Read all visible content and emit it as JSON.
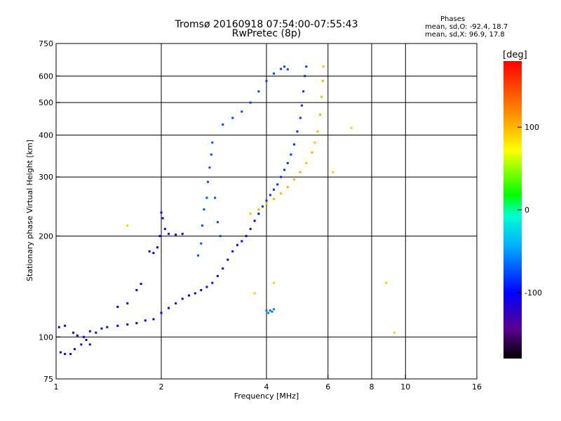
{
  "title": {
    "line1": "Tromsø 20160918 07:54:00-07:55:43",
    "line2": "RwPretec (8p)"
  },
  "phases": {
    "heading": "Phases",
    "o_mode": "mean, sd,O: -92.4, 18.7",
    "x_mode": "mean, sd,X:  96.9, 17.8"
  },
  "colorbar": {
    "unit_label": "[deg]",
    "ticks": [
      "100",
      "0",
      "-100"
    ],
    "tick_values": [
      100,
      0,
      -100
    ],
    "range": [
      -180,
      180
    ]
  },
  "chart_data": {
    "type": "scatter",
    "xlabel": "Frequency [MHz]",
    "ylabel": "Stationary phase Virtual Height [km]",
    "xscale": "log2",
    "yscale": "log",
    "xlim": [
      1,
      16
    ],
    "ylim": [
      75,
      750
    ],
    "x_ticks": [
      1,
      2,
      4,
      6,
      8,
      10,
      16
    ],
    "x_tick_labels": [
      "1",
      "2",
      "4",
      "6",
      "8",
      "10",
      "16"
    ],
    "y_ticks": [
      75,
      100,
      200,
      300,
      400,
      500,
      600,
      750
    ],
    "y_tick_labels": [
      "75",
      "100",
      "200",
      "300",
      "400",
      "500",
      "600",
      "750"
    ],
    "x_gridlines": [
      2,
      4,
      6,
      8,
      10
    ],
    "y_gridlines": [
      100,
      200,
      300,
      400,
      500,
      600
    ],
    "series": [
      {
        "id": "o-mode-low",
        "points": [
          [
            1.02,
            107
          ],
          [
            1.06,
            108
          ],
          [
            1.12,
            103
          ],
          [
            1.15,
            101
          ],
          [
            1.2,
            100
          ],
          [
            1.25,
            104
          ],
          [
            1.3,
            103
          ],
          [
            1.35,
            106
          ],
          [
            1.4,
            107
          ],
          [
            1.5,
            108
          ],
          [
            1.6,
            109
          ],
          [
            1.7,
            110
          ],
          [
            1.8,
            112
          ],
          [
            1.9,
            113
          ],
          [
            2.0,
            118
          ],
          [
            2.1,
            122
          ],
          [
            2.2,
            126
          ],
          [
            2.3,
            130
          ],
          [
            2.4,
            133
          ],
          [
            2.5,
            135
          ],
          [
            2.6,
            138
          ],
          [
            2.7,
            141
          ],
          [
            2.8,
            145
          ],
          [
            2.9,
            152
          ],
          [
            3.0,
            160
          ],
          [
            3.1,
            170
          ],
          [
            3.2,
            180
          ],
          [
            3.3,
            188
          ],
          [
            3.4,
            193
          ],
          [
            3.5,
            200
          ],
          [
            3.6,
            210
          ],
          [
            3.7,
            222
          ],
          [
            3.8,
            233
          ]
        ],
        "phase_deg": -100
      },
      {
        "id": "o-mode-lowest",
        "points": [
          [
            1.03,
            90
          ],
          [
            1.06,
            89
          ],
          [
            1.1,
            89
          ],
          [
            1.13,
            92
          ],
          [
            1.18,
            95
          ],
          [
            1.22,
            98
          ],
          [
            1.25,
            95
          ]
        ],
        "phase_deg": -110
      },
      {
        "id": "o-mode-e-cusp",
        "points": [
          [
            1.5,
            123
          ],
          [
            1.6,
            126
          ],
          [
            1.7,
            138
          ],
          [
            1.75,
            144
          ],
          [
            1.85,
            180
          ],
          [
            1.9,
            178
          ],
          [
            1.95,
            185
          ],
          [
            1.98,
            200
          ],
          [
            2.0,
            235
          ],
          [
            2.02,
            226
          ],
          [
            2.05,
            210
          ],
          [
            2.1,
            203
          ],
          [
            2.2,
            202
          ],
          [
            2.3,
            203
          ]
        ],
        "phase_deg": -105
      },
      {
        "id": "o-mode-f-trace",
        "points": [
          [
            3.9,
            245
          ],
          [
            4.0,
            255
          ],
          [
            4.1,
            265
          ],
          [
            4.2,
            275
          ],
          [
            4.3,
            285
          ],
          [
            4.4,
            300
          ],
          [
            4.5,
            315
          ],
          [
            4.6,
            330
          ],
          [
            4.7,
            350
          ],
          [
            4.8,
            375
          ],
          [
            4.9,
            410
          ],
          [
            5.0,
            450
          ],
          [
            5.05,
            490
          ],
          [
            5.1,
            540
          ],
          [
            5.15,
            600
          ],
          [
            5.2,
            640
          ]
        ],
        "phase_deg": -85
      },
      {
        "id": "o-mode-upper",
        "points": [
          [
            3.0,
            430
          ],
          [
            3.2,
            450
          ],
          [
            3.4,
            470
          ],
          [
            3.6,
            500
          ],
          [
            3.8,
            540
          ],
          [
            4.0,
            580
          ],
          [
            4.2,
            610
          ],
          [
            4.4,
            630
          ],
          [
            4.5,
            640
          ],
          [
            4.6,
            628
          ]
        ],
        "phase_deg": -80
      },
      {
        "id": "o-mode-spread-2_6",
        "points": [
          [
            2.55,
            175
          ],
          [
            2.6,
            190
          ],
          [
            2.62,
            215
          ],
          [
            2.65,
            240
          ],
          [
            2.7,
            260
          ],
          [
            2.72,
            290
          ],
          [
            2.75,
            320
          ],
          [
            2.78,
            350
          ],
          [
            2.8,
            380
          ],
          [
            2.85,
            260
          ],
          [
            2.9,
            220
          ],
          [
            2.95,
            200
          ]
        ],
        "phase_deg": -75
      },
      {
        "id": "o-mode-isolated",
        "points": [
          [
            4.0,
            120
          ],
          [
            4.05,
            118
          ],
          [
            4.1,
            120
          ],
          [
            4.15,
            119
          ],
          [
            4.2,
            121
          ]
        ],
        "phase_deg": -60
      },
      {
        "id": "x-mode-f-trace",
        "points": [
          [
            3.6,
            233
          ],
          [
            3.8,
            240
          ],
          [
            4.0,
            250
          ],
          [
            4.2,
            258
          ],
          [
            4.4,
            268
          ],
          [
            4.6,
            280
          ],
          [
            4.8,
            295
          ],
          [
            5.0,
            310
          ],
          [
            5.2,
            330
          ],
          [
            5.4,
            355
          ],
          [
            5.5,
            380
          ],
          [
            5.6,
            410
          ],
          [
            5.7,
            460
          ],
          [
            5.75,
            520
          ],
          [
            5.8,
            580
          ],
          [
            5.82,
            640
          ]
        ],
        "phase_deg": 100
      },
      {
        "id": "scattered",
        "points": [
          [
            9.3,
            103
          ],
          [
            8.8,
            145
          ],
          [
            7.0,
            420
          ],
          [
            6.2,
            310
          ],
          [
            3.7,
            135
          ],
          [
            4.2,
            145
          ],
          [
            1.6,
            215
          ]
        ],
        "phase_deg": 90
      }
    ]
  }
}
